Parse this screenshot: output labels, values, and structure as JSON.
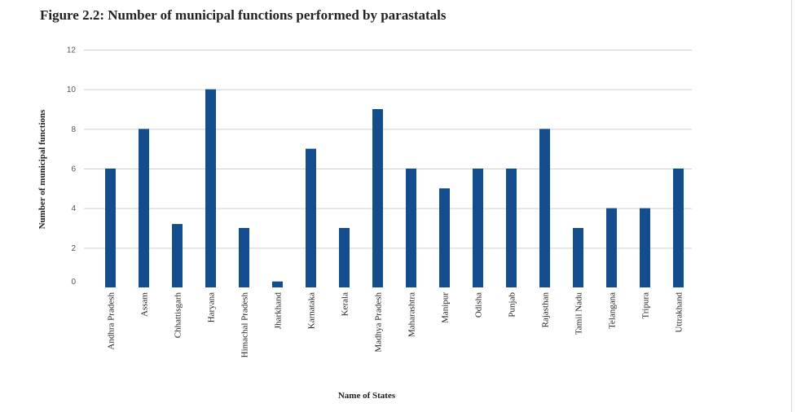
{
  "title": "Figure 2.2: Number of municipal functions performed by parastatals",
  "chart_data": {
    "type": "bar",
    "title": "Figure 2.2: Number of municipal functions performed by parastatals",
    "xlabel": "Name of States",
    "ylabel": "Number of municipal functions",
    "ylim": [
      0,
      12
    ],
    "yticks": [
      0,
      2,
      4,
      6,
      8,
      10,
      12
    ],
    "grid": true,
    "bar_color": "#134d8d",
    "categories": [
      "Andhra Pradesh",
      "Assam",
      "Chhattisgarh",
      "Haryana",
      "Himachal Pradesh",
      "Jharkhand",
      "Karnataka",
      "Kerala",
      "Madhya Pradesh",
      "Maharashtra",
      "Manipur",
      "Odisha",
      "Punjab",
      "Rajasthan",
      "Tamil Nadu",
      "Telangana",
      "Tripura",
      "Uttrakhand"
    ],
    "values": [
      6,
      8,
      3.2,
      10,
      3,
      0.3,
      7,
      3,
      9,
      6,
      5,
      6,
      6,
      8,
      3,
      4,
      4,
      6
    ]
  }
}
